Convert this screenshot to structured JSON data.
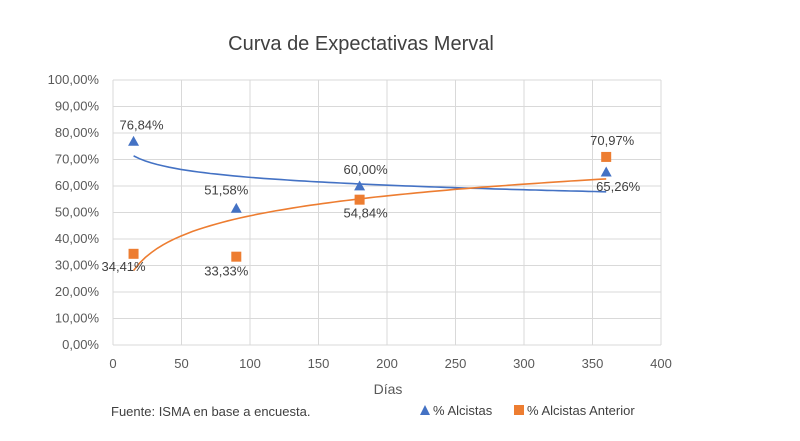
{
  "chart_data": {
    "type": "scatter",
    "title": "Curva de Expectativas Merval",
    "xlabel": "Días",
    "ylabel": "",
    "xlim": [
      0,
      400
    ],
    "ylim": [
      0,
      100
    ],
    "x_ticks": [
      "0",
      "50",
      "100",
      "150",
      "200",
      "250",
      "300",
      "350",
      "400"
    ],
    "y_ticks": [
      "0,00%",
      "10,00%",
      "20,00%",
      "30,00%",
      "40,00%",
      "50,00%",
      "60,00%",
      "70,00%",
      "80,00%",
      "90,00%",
      "100,00%"
    ],
    "grid": true,
    "legend_position": "bottom-right",
    "trendline": "logarithmic",
    "series": [
      {
        "name": "% Alcistas",
        "marker": "triangle",
        "color": "#4472C4",
        "x": [
          15,
          90,
          180,
          360
        ],
        "values": [
          76.84,
          51.58,
          60.0,
          65.26
        ],
        "labels": [
          "76,84%",
          "51,58%",
          "60,00%",
          "65,26%"
        ]
      },
      {
        "name": "% Alcistas Anterior",
        "marker": "square",
        "color": "#ED7D31",
        "x": [
          15,
          90,
          180,
          360
        ],
        "values": [
          34.41,
          33.33,
          54.84,
          70.97
        ],
        "labels": [
          "34,41%",
          "33,33%",
          "54,84%",
          "70,97%"
        ]
      }
    ]
  },
  "footer": {
    "source": "Fuente: ISMA en base a encuesta."
  }
}
